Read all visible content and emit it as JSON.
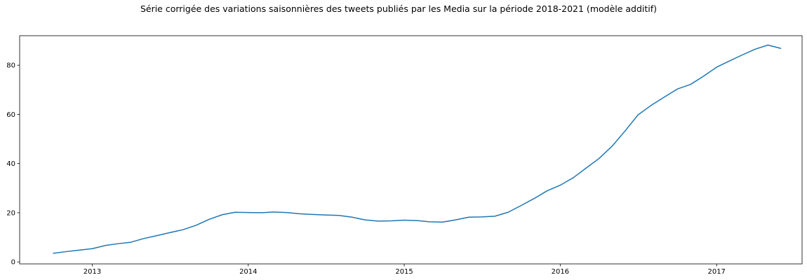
{
  "chart_data": {
    "type": "line",
    "title": "Série corrigée des variations saisonnières des tweets publiés par les Media sur la période 2018-2021 (modèle additif)",
    "xlabel": "",
    "ylabel": "",
    "xlim": [
      "2012-07-15",
      "2017-07-20"
    ],
    "ylim": [
      -0.8,
      92
    ],
    "grid": false,
    "legend": "none",
    "line_color": "#1f77b4",
    "x_ticks": [
      "2013-01-01",
      "2014-01-01",
      "2015-01-01",
      "2016-01-01",
      "2017-01-01"
    ],
    "x_tick_labels": [
      "2013",
      "2014",
      "2015",
      "2016",
      "2017"
    ],
    "y_ticks": [
      0,
      20,
      40,
      60,
      80
    ],
    "y_tick_labels": [
      "0",
      "20",
      "40",
      "60",
      "80"
    ],
    "series": [
      {
        "name": "",
        "x": [
          "2012-10-01",
          "2012-11-01",
          "2012-12-01",
          "2013-01-01",
          "2013-02-01",
          "2013-03-01",
          "2013-04-01",
          "2013-05-01",
          "2013-06-01",
          "2013-07-01",
          "2013-08-01",
          "2013-09-01",
          "2013-10-01",
          "2013-11-01",
          "2013-12-01",
          "2014-01-01",
          "2014-02-01",
          "2014-03-01",
          "2014-04-01",
          "2014-05-01",
          "2014-06-01",
          "2014-07-01",
          "2014-08-01",
          "2014-09-01",
          "2014-10-01",
          "2014-11-01",
          "2014-12-01",
          "2015-01-01",
          "2015-02-01",
          "2015-03-01",
          "2015-04-01",
          "2015-05-01",
          "2015-06-01",
          "2015-07-01",
          "2015-08-01",
          "2015-09-01",
          "2015-10-01",
          "2015-11-01",
          "2015-12-01",
          "2016-01-01",
          "2016-02-01",
          "2016-03-01",
          "2016-04-01",
          "2016-05-01",
          "2016-06-01",
          "2016-07-01",
          "2016-08-01",
          "2016-09-01",
          "2016-10-01",
          "2016-11-01",
          "2016-12-01",
          "2017-01-01",
          "2017-02-01",
          "2017-03-01",
          "2017-04-01",
          "2017-05-01",
          "2017-06-01"
        ],
        "values": [
          3.5,
          4.2,
          4.8,
          5.4,
          6.7,
          7.4,
          8.0,
          9.5,
          10.7,
          11.9,
          13.1,
          14.9,
          17.3,
          19.2,
          20.2,
          20.1,
          20.0,
          20.3,
          20.1,
          19.6,
          19.3,
          19.1,
          18.9,
          18.2,
          17.1,
          16.6,
          16.7,
          17.0,
          16.8,
          16.3,
          16.2,
          17.1,
          18.2,
          18.3,
          18.6,
          20.2,
          22.9,
          25.8,
          28.9,
          31.2,
          34.3,
          38.1,
          42.1,
          47.0,
          53.3,
          59.8,
          63.7,
          67.1,
          70.3,
          72.2,
          75.5,
          79.2,
          81.8,
          84.1,
          86.5,
          88.2,
          86.8
        ]
      }
    ]
  }
}
